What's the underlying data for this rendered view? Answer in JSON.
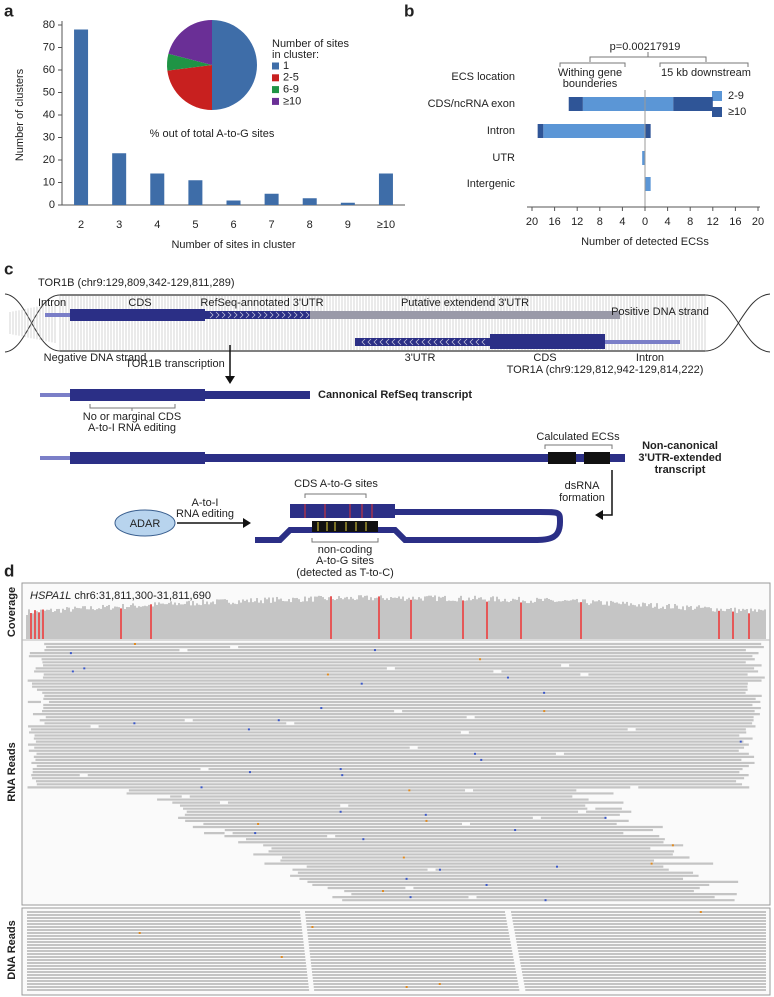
{
  "panel_labels": [
    "a",
    "b",
    "c",
    "d"
  ],
  "chart_data": [
    {
      "type": "bar",
      "categories": [
        "2",
        "3",
        "4",
        "5",
        "6",
        "7",
        "8",
        "9",
        "≥10"
      ],
      "values": [
        78,
        23,
        14,
        11,
        2,
        5,
        3,
        1,
        14
      ],
      "color": "#3e6da8",
      "ylim": [
        0,
        80
      ],
      "yticks": [
        0,
        10,
        20,
        30,
        40,
        50,
        60,
        70,
        80
      ],
      "xlabel": "Number of sites in cluster",
      "ylabel": "Number of clusters",
      "inset": {
        "type": "pie",
        "legend_title": [
          "Number of sites",
          "in cluster:"
        ],
        "caption": "% out of total A-to-G sites",
        "categories": [
          "1",
          "2-5",
          "6-9",
          "≥10"
        ],
        "values": [
          50,
          23,
          6,
          21
        ],
        "colors": [
          "#3e6da8",
          "#c8201f",
          "#1f9445",
          "#6a2f96"
        ]
      }
    },
    {
      "type": "diverging_bar",
      "title": "p=0.00217919",
      "group_labels": [
        [
          "Withing gene",
          "bounderies"
        ],
        [
          "15 kb downstream"
        ]
      ],
      "category_header": "ECS location",
      "categories": [
        "CDS/ncRNA exon",
        "Intron",
        "UTR",
        "Intergenic"
      ],
      "series": [
        {
          "name": "2-9",
          "color": "#5b96d6",
          "values": [
            5,
            0,
            0,
            1
          ],
          "left_values": [
            -11,
            -18,
            -0.5,
            0
          ]
        },
        {
          "name": "≥10",
          "color": "#2f5597",
          "values": [
            7,
            1,
            0,
            0
          ],
          "left_values": [
            -2.5,
            -1,
            0,
            0
          ]
        }
      ],
      "xlim": [
        -20,
        20
      ],
      "xticks": [
        {
          "value": -20,
          "label": "20"
        },
        {
          "value": -16,
          "label": "16"
        },
        {
          "value": -12,
          "label": "12"
        },
        {
          "value": -8,
          "label": "8"
        },
        {
          "value": -4,
          "label": "4"
        },
        0,
        4,
        8,
        12,
        16,
        20
      ],
      "xlabel": "Number of detected ECSs"
    }
  ],
  "diagram": {
    "tor1b": "TOR1B (chr9:129,809,342-129,811,289)",
    "intron_top": "Intron",
    "cds_top": "CDS",
    "refseq_utr": "RefSeq-annotated 3'UTR",
    "putative_utr": "Putative extendend 3'UTR",
    "positive_strand": "Positive DNA strand",
    "negative_strand": "Negative DNA strand",
    "utr_bottom": "3'UTR",
    "cds_bottom": "CDS",
    "intron_bottom": "Intron",
    "tor1a": "TOR1A (chr9:129,812,942-129,814,222)",
    "transcription": "TOR1B transcription",
    "canonical": "Cannonical RefSeq transcript",
    "no_editing": [
      "No or marginal CDS",
      "A-to-I RNA editing"
    ],
    "ecs": "Calculated ECSs",
    "noncanonical": [
      "Non-canonical",
      "3'UTR-extended",
      "transcript"
    ],
    "dsrna": [
      "dsRNA",
      "formation"
    ],
    "adar": "ADAR",
    "editing": [
      "A-to-I",
      "RNA editing"
    ],
    "cds_sites": "CDS A-to-G sites",
    "noncoding_sites": [
      "non-coding",
      "A-to-G sites"
    ],
    "detected": "(detected as T-to-C)"
  },
  "igv": {
    "gene": "HSPA1L",
    "locus": "chr6:31,811,300-31,811,690",
    "tracks": [
      "Coverage",
      "RNA Reads",
      "DNA Reads"
    ]
  }
}
